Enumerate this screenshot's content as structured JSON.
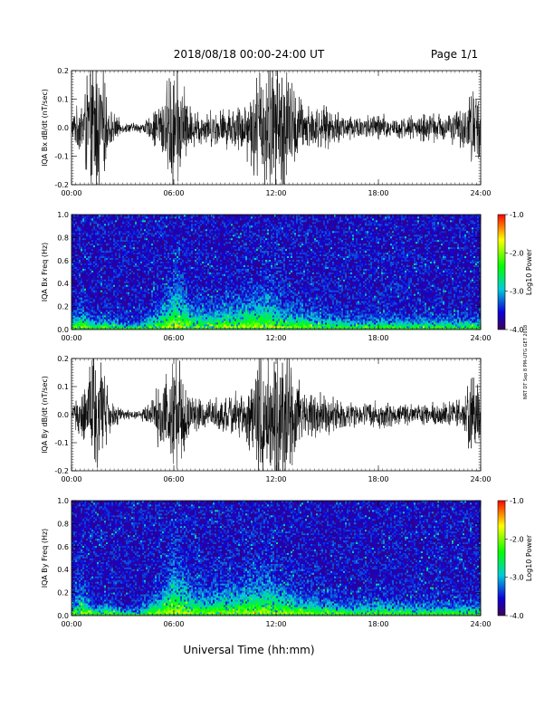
{
  "header": {
    "title": "2018/08/18   00:00-24:00 UT",
    "page": "Page 1/1"
  },
  "footer": {
    "xlabel": "Universal Time (hh:mm)",
    "side_note": "NRT DT Sep 8 PM–UTG  GET 2018"
  },
  "chart_data": [
    {
      "id": "bx-waveform",
      "type": "line",
      "ylabel": "IQA Bx dB/dt (nT/sec)",
      "xlim": [
        0,
        24
      ],
      "ylim": [
        -0.2,
        0.2
      ],
      "xticks": [
        "00:00",
        "06:00",
        "12:00",
        "18:00",
        "24:00"
      ],
      "yticks": [
        "-0.2",
        "-0.1",
        "0.0",
        "0.1",
        "0.2"
      ],
      "envelope": {
        "x": [
          0,
          0.5,
          1,
          1.4,
          1.8,
          2.2,
          3,
          4,
          4.6,
          5.2,
          5.7,
          6.0,
          6.4,
          7,
          8,
          9,
          10,
          10.5,
          11,
          11.5,
          12,
          12.5,
          13,
          13.5,
          14,
          15,
          16,
          17,
          18,
          19,
          20,
          21,
          22,
          23,
          23.5,
          24
        ],
        "amplitude": [
          0.05,
          0.1,
          0.25,
          0.3,
          0.25,
          0.08,
          0.02,
          0.02,
          0.04,
          0.12,
          0.2,
          0.3,
          0.22,
          0.08,
          0.07,
          0.08,
          0.1,
          0.15,
          0.25,
          0.3,
          0.3,
          0.3,
          0.18,
          0.12,
          0.1,
          0.08,
          0.06,
          0.05,
          0.06,
          0.04,
          0.05,
          0.06,
          0.06,
          0.08,
          0.18,
          0.12
        ]
      }
    },
    {
      "id": "bx-spectrogram",
      "type": "heatmap",
      "ylabel": "IQA Bx Freq (Hz)",
      "xlim": [
        0,
        24
      ],
      "ylim": [
        0,
        1.0
      ],
      "xticks": [
        "00:00",
        "06:00",
        "12:00",
        "18:00",
        "24:00"
      ],
      "yticks": [
        "0.0",
        "0.2",
        "0.4",
        "0.6",
        "0.8",
        "1.0"
      ],
      "colorbar": {
        "label": "Log10 Power",
        "range": [
          -4.0,
          -1.0
        ],
        "ticks": [
          "-1.0",
          "-2.0",
          "-3.0",
          "-4.0"
        ]
      },
      "low_freq_power": {
        "x": [
          0,
          0.6,
          1,
          1.5,
          2,
          3,
          4,
          4.8,
          5.2,
          5.6,
          6.0,
          6.4,
          7,
          8,
          9,
          10,
          11,
          11.5,
          12,
          12.5,
          13,
          14,
          15,
          16,
          17,
          18,
          19,
          20,
          21,
          22,
          23,
          24
        ],
        "height_hz": [
          0.05,
          0.1,
          0.06,
          0.04,
          0.06,
          0.03,
          0.03,
          0.08,
          0.1,
          0.14,
          0.2,
          0.18,
          0.1,
          0.09,
          0.1,
          0.12,
          0.14,
          0.16,
          0.12,
          0.1,
          0.09,
          0.08,
          0.06,
          0.05,
          0.05,
          0.06,
          0.05,
          0.05,
          0.05,
          0.05,
          0.05,
          0.05
        ]
      }
    },
    {
      "id": "by-waveform",
      "type": "line",
      "ylabel": "IQA By dB/dt (nT/sec)",
      "xlim": [
        0,
        24
      ],
      "ylim": [
        -0.2,
        0.2
      ],
      "xticks": [
        "00:00",
        "06:00",
        "12:00",
        "18:00",
        "24:00"
      ],
      "yticks": [
        "-0.2",
        "-0.1",
        "0.0",
        "0.1",
        "0.2"
      ],
      "envelope": {
        "x": [
          0,
          0.5,
          1,
          1.4,
          1.8,
          2.2,
          3,
          4,
          4.6,
          5.2,
          5.7,
          6.0,
          6.4,
          7,
          8,
          9,
          10,
          10.5,
          11,
          11.5,
          12,
          12.5,
          13,
          13.5,
          14,
          15,
          16,
          17,
          18,
          19,
          20,
          21,
          22,
          23,
          23.5,
          24
        ],
        "amplitude": [
          0.04,
          0.08,
          0.2,
          0.3,
          0.22,
          0.08,
          0.02,
          0.02,
          0.05,
          0.14,
          0.22,
          0.3,
          0.22,
          0.07,
          0.06,
          0.08,
          0.1,
          0.14,
          0.3,
          0.3,
          0.3,
          0.3,
          0.2,
          0.12,
          0.1,
          0.08,
          0.06,
          0.05,
          0.06,
          0.04,
          0.04,
          0.05,
          0.05,
          0.06,
          0.22,
          0.1
        ]
      }
    },
    {
      "id": "by-spectrogram",
      "type": "heatmap",
      "ylabel": "IQA By Freq (Hz)",
      "xlim": [
        0,
        24
      ],
      "ylim": [
        0,
        1.0
      ],
      "xticks": [
        "00:00",
        "06:00",
        "12:00",
        "18:00",
        "24:00"
      ],
      "yticks": [
        "0.0",
        "0.2",
        "0.4",
        "0.6",
        "0.8",
        "1.0"
      ],
      "colorbar": {
        "label": "Log10 Power",
        "range": [
          -4.0,
          -1.0
        ],
        "ticks": [
          "-1.0",
          "-2.0",
          "-3.0",
          "-4.0"
        ]
      },
      "low_freq_power": {
        "x": [
          0,
          0.6,
          1,
          1.5,
          2,
          3,
          4,
          4.8,
          5.2,
          5.6,
          6.0,
          6.4,
          7,
          8,
          9,
          10,
          11,
          11.5,
          12,
          12.5,
          13,
          14,
          15,
          16,
          17,
          18,
          19,
          20,
          21,
          22,
          23,
          24
        ],
        "height_hz": [
          0.05,
          0.12,
          0.06,
          0.04,
          0.06,
          0.03,
          0.03,
          0.08,
          0.1,
          0.14,
          0.22,
          0.2,
          0.12,
          0.1,
          0.12,
          0.14,
          0.16,
          0.18,
          0.14,
          0.12,
          0.1,
          0.08,
          0.07,
          0.06,
          0.05,
          0.06,
          0.05,
          0.05,
          0.05,
          0.05,
          0.05,
          0.05
        ]
      }
    }
  ]
}
